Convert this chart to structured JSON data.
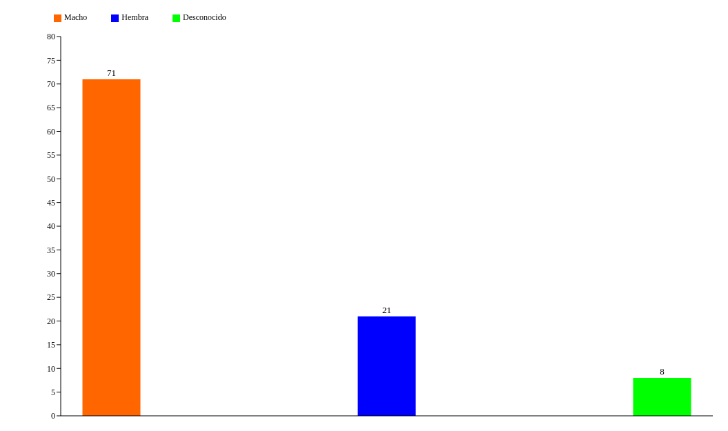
{
  "chart_data": {
    "type": "bar",
    "categories": [
      null,
      null,
      null
    ],
    "series": [
      {
        "name": "Macho",
        "color": "#ff6600",
        "values": [
          71,
          null,
          null
        ]
      },
      {
        "name": "Hembra",
        "color": "#0000ff",
        "values": [
          null,
          21,
          null
        ]
      },
      {
        "name": "Desconocido",
        "color": "#00ff00",
        "values": [
          null,
          null,
          8
        ]
      }
    ],
    "ylim": [
      0,
      80
    ],
    "yticks": [
      0,
      5,
      10,
      15,
      20,
      25,
      30,
      35,
      40,
      45,
      50,
      55,
      60,
      65,
      70,
      75,
      80
    ],
    "grid": false,
    "legend": "top left",
    "data_labels": true
  }
}
